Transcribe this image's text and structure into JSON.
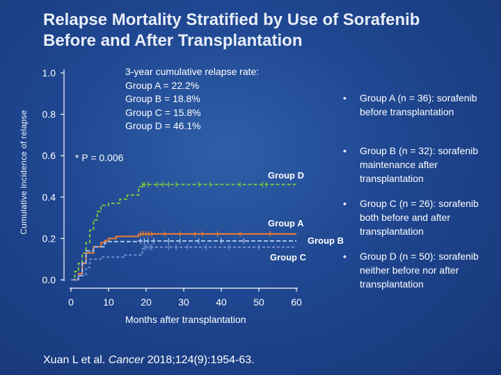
{
  "title": {
    "line1": "Relapse Mortality Stratified by Use of Sorafenib",
    "line2": "Before and After Transplantation"
  },
  "rates": {
    "heading": "3-year cumulative relapse rate:",
    "rows": [
      "Group A = 22.2%",
      "Group B = 18.8%",
      "Group C = 15.8%",
      "Group D = 46.1%"
    ]
  },
  "p_value": "* P = 0.006",
  "groups": [
    {
      "bullet": "•",
      "name": "Group A",
      "detail": "(n = 36): sorafenib before transplantation"
    },
    {
      "bullet": "•",
      "name": "Group B",
      "detail": "(n = 32): sorafenib maintenance after transplantation"
    },
    {
      "bullet": "•",
      "name": "Group C",
      "detail": "(n = 26): sorafenib both before and after transplantation"
    },
    {
      "bullet": "•",
      "name": "Group D",
      "detail": "(n = 50): sorafenib neither before nor after transplantation"
    }
  ],
  "citation": {
    "authors": "Xuan L et al.",
    "journal": "Cancer",
    "ref": "2018;124(9):1954-63."
  },
  "colors": {
    "group_a": "#e07b39",
    "group_b": "#a9c4ec",
    "group_c": "#6f8fd4",
    "group_d": "#7fc241",
    "axis": "#ffffff",
    "tick_label": "#ffffff"
  },
  "chart_data": {
    "type": "line",
    "title": "Relapse Mortality Stratified by Use of Sorafenib Before and After Transplantation",
    "xlabel": "Months after transplantation",
    "ylabel": "Cumulative incidence of relapse",
    "xlim": [
      0,
      60
    ],
    "ylim": [
      0,
      1.0
    ],
    "x_ticks": [
      0,
      10,
      20,
      30,
      40,
      50,
      60
    ],
    "y_ticks": [
      "0.0",
      "0.2",
      "0.4",
      "0.6",
      "0.8",
      "1.0"
    ],
    "grid": false,
    "series": [
      {
        "name": "Group D",
        "label": "Group D",
        "color_key": "group_d",
        "steps": [
          [
            0,
            0
          ],
          [
            1,
            0.04
          ],
          [
            2,
            0.08
          ],
          [
            3,
            0.13
          ],
          [
            4,
            0.18
          ],
          [
            5,
            0.24
          ],
          [
            6,
            0.29
          ],
          [
            7,
            0.33
          ],
          [
            8,
            0.36
          ],
          [
            10,
            0.37
          ],
          [
            13,
            0.39
          ],
          [
            15,
            0.41
          ],
          [
            18,
            0.45
          ],
          [
            19,
            0.46
          ],
          [
            20,
            0.461
          ],
          [
            60,
            0.461
          ]
        ],
        "censor_x": [
          19,
          19.5,
          20.5,
          23,
          24.5,
          26,
          28,
          34,
          37,
          45,
          51,
          52
        ]
      },
      {
        "name": "Group A",
        "label": "Group A",
        "color_key": "group_a",
        "steps": [
          [
            0,
            0
          ],
          [
            2,
            0.03
          ],
          [
            3,
            0.08
          ],
          [
            4,
            0.13
          ],
          [
            6,
            0.16
          ],
          [
            8,
            0.18
          ],
          [
            9,
            0.19
          ],
          [
            10,
            0.2
          ],
          [
            12,
            0.21
          ],
          [
            18,
            0.22
          ],
          [
            18.5,
            0.222
          ],
          [
            60,
            0.222
          ]
        ],
        "censor_x": [
          18.5,
          19.2,
          20,
          20.7,
          21.5,
          25,
          29,
          33,
          35,
          39,
          45,
          53
        ]
      },
      {
        "name": "Group B",
        "label": "Group B",
        "color_key": "group_b",
        "steps": [
          [
            0,
            0
          ],
          [
            2,
            0.02
          ],
          [
            3,
            0.08
          ],
          [
            4,
            0.14
          ],
          [
            6,
            0.16
          ],
          [
            9,
            0.18
          ],
          [
            10,
            0.185
          ],
          [
            18,
            0.188
          ],
          [
            60,
            0.188
          ]
        ],
        "censor_x": [
          18.5,
          19.5,
          20.5,
          22,
          26,
          29,
          34,
          40,
          46
        ]
      },
      {
        "name": "Group C",
        "label": "Group C",
        "color_key": "group_c",
        "steps": [
          [
            0,
            0
          ],
          [
            2,
            0.02
          ],
          [
            4,
            0.06
          ],
          [
            5,
            0.1
          ],
          [
            8,
            0.11
          ],
          [
            14,
            0.12
          ],
          [
            19,
            0.15
          ],
          [
            19.5,
            0.158
          ],
          [
            60,
            0.158
          ]
        ],
        "censor_x": [
          19.5,
          20,
          21,
          21.5,
          26,
          28,
          31,
          36,
          42,
          50
        ]
      }
    ]
  }
}
